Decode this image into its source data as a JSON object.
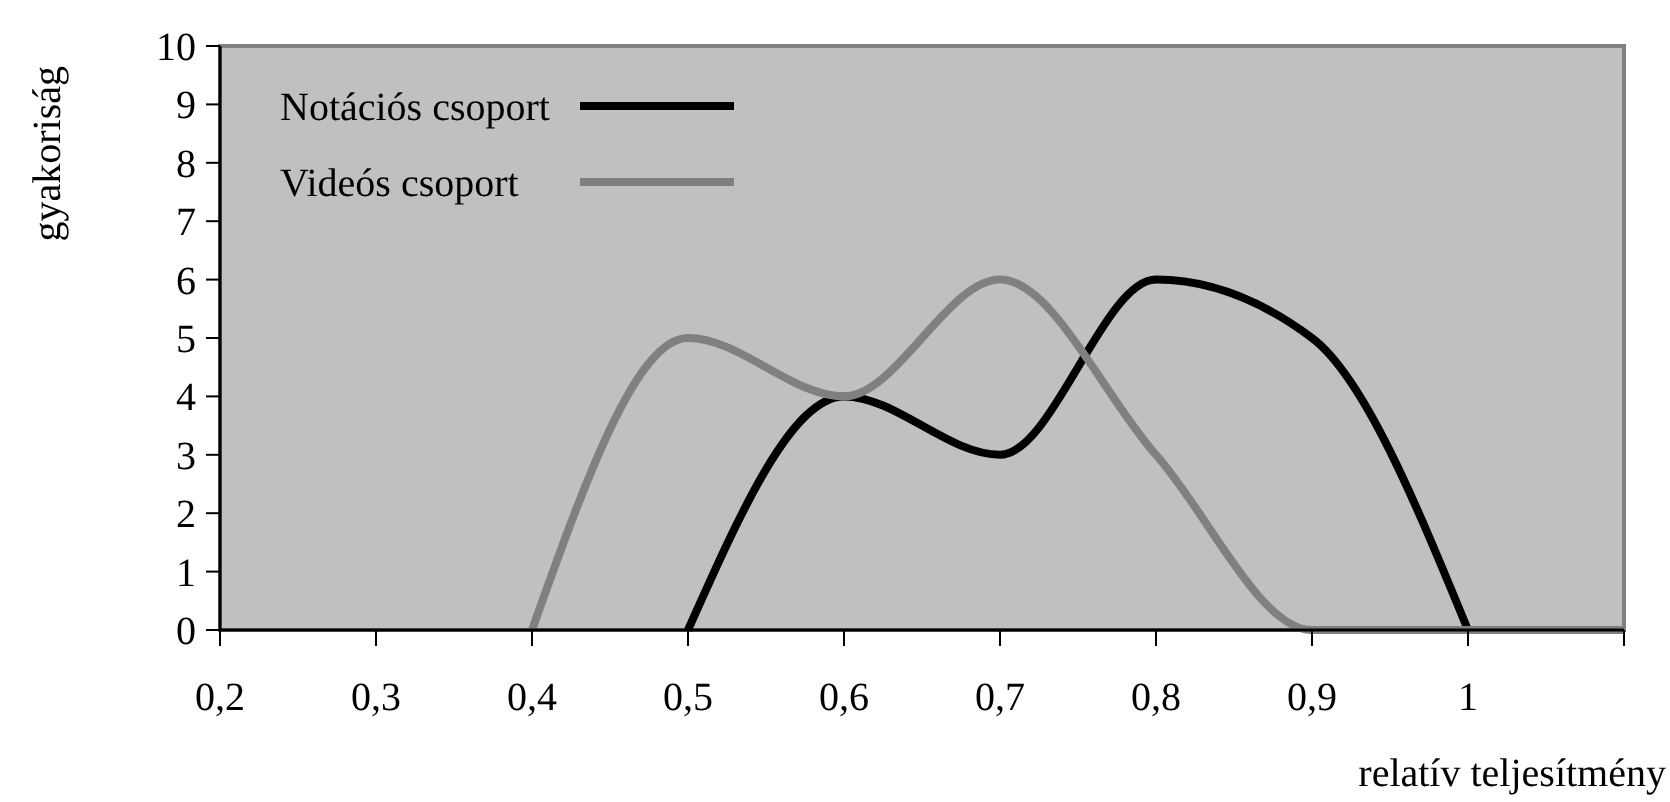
{
  "chart_data": {
    "type": "line",
    "xlabel": "relatív teljesítmény",
    "ylabel": "gyakoriság",
    "xlim": [
      0.2,
      1.1
    ],
    "xticks": [
      {
        "value": 0.2,
        "label": "0,2"
      },
      {
        "value": 0.3,
        "label": "0,3"
      },
      {
        "value": 0.4,
        "label": "0,4"
      },
      {
        "value": 0.5,
        "label": "0,5"
      },
      {
        "value": 0.6,
        "label": "0,6"
      },
      {
        "value": 0.7,
        "label": "0,7"
      },
      {
        "value": 0.8,
        "label": "0,8"
      },
      {
        "value": 0.9,
        "label": "0,9"
      },
      {
        "value": 1,
        "label": "1"
      },
      {
        "value": 1.1,
        "label": null
      }
    ],
    "ylim": [
      0,
      10
    ],
    "yticks": [
      0,
      1,
      2,
      3,
      4,
      5,
      6,
      7,
      8,
      9,
      10
    ],
    "grid": false,
    "legend": "top left",
    "marker": "none",
    "line_style": "solid",
    "series": [
      {
        "name": "Notációs csoport",
        "color": "#000000",
        "x": [
          0.5,
          0.6,
          0.7,
          0.8,
          0.9,
          1.0
        ],
        "values": [
          0,
          4,
          3,
          6,
          5,
          0
        ]
      },
      {
        "name": "Videós csoport",
        "color": "#808080",
        "x": [
          0.4,
          0.5,
          0.6,
          0.7,
          0.8,
          0.9,
          1.0,
          1.1
        ],
        "values": [
          0,
          5,
          4,
          6,
          3,
          0,
          0,
          0
        ]
      }
    ]
  }
}
